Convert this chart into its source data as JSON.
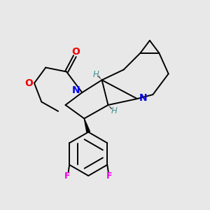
{
  "bg_color": "#e8e8e8",
  "atom_colors": {
    "N": "#0000ee",
    "O": "#ee0000",
    "F": "#ee00ee",
    "C": "#000000",
    "H_stereo": "#4a9090"
  },
  "bond_color": "#000000",
  "bond_width": 1.4
}
